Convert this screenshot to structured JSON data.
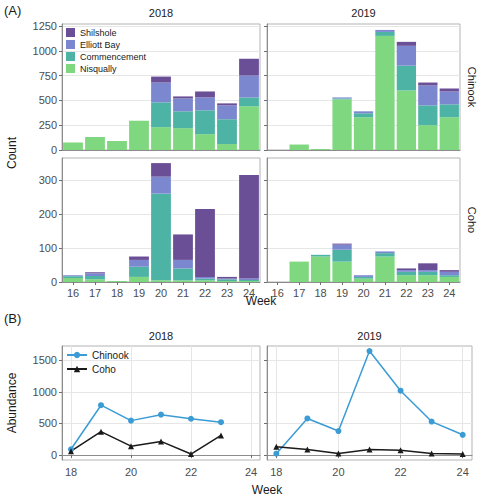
{
  "chart_data": [
    {
      "type": "bar",
      "title": "(A)",
      "stacked": true,
      "grid": true,
      "legend": "top-left",
      "xlabel": "Week",
      "ylabel": "Count",
      "columns": [
        "2018",
        "2019"
      ],
      "categories": [
        "16",
        "17",
        "18",
        "19",
        "20",
        "21",
        "22",
        "23",
        "24"
      ],
      "rows": [
        {
          "title": "Chinook",
          "ylim": [
            0,
            1270
          ],
          "yticks": [
            0,
            250,
            500,
            750,
            1000,
            1250
          ],
          "panels": [
            {
              "series": [
                {
                  "name": "Shilshole",
                  "color": "#6b4f96",
                  "values": [
                    0,
                    0,
                    0,
                    0,
                    60,
                    20,
                    60,
                    20,
                    170
                  ]
                },
                {
                  "name": "Elliott Bay",
                  "color": "#7b88cf",
                  "values": [
                    0,
                    0,
                    0,
                    0,
                    200,
                    130,
                    130,
                    140,
                    220
                  ]
                },
                {
                  "name": "Commencement",
                  "color": "#4db3a4",
                  "values": [
                    0,
                    0,
                    0,
                    0,
                    250,
                    170,
                    240,
                    250,
                    90
                  ]
                },
                {
                  "name": "Nisqually",
                  "color": "#7fd77f",
                  "values": [
                    75,
                    130,
                    90,
                    295,
                    230,
                    220,
                    160,
                    60,
                    440
                  ]
                }
              ]
            },
            {
              "series": [
                {
                  "name": "Shilshole",
                  "color": "#6b4f96",
                  "values": [
                    null,
                    0,
                    0,
                    0,
                    0,
                    0,
                    40,
                    30,
                    30
                  ]
                },
                {
                  "name": "Elliott Bay",
                  "color": "#7b88cf",
                  "values": [
                    null,
                    0,
                    0,
                    10,
                    20,
                    20,
                    200,
                    200,
                    130
                  ]
                },
                {
                  "name": "Commencement",
                  "color": "#4db3a4",
                  "values": [
                    null,
                    0,
                    0,
                    10,
                    40,
                    40,
                    250,
                    200,
                    130
                  ]
                },
                {
                  "name": "Nisqually",
                  "color": "#7fd77f",
                  "values": [
                    null,
                    55,
                    10,
                    510,
                    330,
                    1150,
                    600,
                    250,
                    330
                  ]
                }
              ]
            }
          ]
        },
        {
          "title": "Coho",
          "ylim": [
            0,
            365
          ],
          "yticks": [
            0,
            100,
            200,
            300
          ],
          "panels": [
            {
              "series": [
                {
                  "name": "Shilshole",
                  "color": "#6b4f96",
                  "values": [
                    0,
                    3,
                    0,
                    10,
                    40,
                    75,
                    200,
                    5,
                    305
                  ]
                },
                {
                  "name": "Elliott Bay",
                  "color": "#7b88cf",
                  "values": [
                    3,
                    8,
                    0,
                    20,
                    50,
                    25,
                    5,
                    2,
                    4
                  ]
                },
                {
                  "name": "Commencement",
                  "color": "#4db3a4",
                  "values": [
                    5,
                    10,
                    0,
                    30,
                    255,
                    35,
                    5,
                    5,
                    3
                  ]
                },
                {
                  "name": "Nisqually",
                  "color": "#7fd77f",
                  "values": [
                    12,
                    8,
                    3,
                    15,
                    5,
                    5,
                    5,
                    3,
                    3
                  ]
                }
              ]
            },
            {
              "series": [
                {
                  "name": "Shilshole",
                  "color": "#6b4f96",
                  "values": [
                    null,
                    0,
                    0,
                    3,
                    0,
                    0,
                    5,
                    20,
                    5
                  ]
                },
                {
                  "name": "Elliott Bay",
                  "color": "#7b88cf",
                  "values": [
                    null,
                    0,
                    0,
                    15,
                    5,
                    5,
                    5,
                    5,
                    10
                  ]
                },
                {
                  "name": "Commencement",
                  "color": "#4db3a4",
                  "values": [
                    null,
                    0,
                    5,
                    35,
                    5,
                    10,
                    10,
                    10,
                    5
                  ]
                },
                {
                  "name": "Nisqually",
                  "color": "#7fd77f",
                  "values": [
                    null,
                    60,
                    75,
                    60,
                    10,
                    75,
                    20,
                    20,
                    15
                  ]
                }
              ]
            }
          ]
        }
      ]
    },
    {
      "type": "line",
      "title": "(B)",
      "grid": true,
      "legend": "top-left",
      "xlabel": "Week",
      "ylabel": "Abundance",
      "columns": [
        "2018",
        "2019"
      ],
      "xlim": [
        17.7,
        24.3
      ],
      "xticks": [
        18,
        20,
        22,
        24
      ],
      "ylim": [
        -80,
        1730
      ],
      "yticks": [
        0,
        500,
        1000,
        1500
      ],
      "panels": [
        {
          "series": [
            {
              "name": "Chinook",
              "color": "#3a9bd5",
              "marker": "circle",
              "x": [
                18,
                19,
                20,
                21,
                22,
                23
              ],
              "values": [
                90,
                790,
                545,
                640,
                575,
                520
              ]
            },
            {
              "name": "Coho",
              "color": "#1a1a1a",
              "marker": "triangle",
              "x": [
                18,
                19,
                20,
                21,
                22,
                23
              ],
              "values": [
                60,
                370,
                140,
                215,
                15,
                310
              ]
            }
          ]
        },
        {
          "series": [
            {
              "name": "Chinook",
              "color": "#3a9bd5",
              "marker": "circle",
              "x": [
                18,
                19,
                20,
                21,
                22,
                23,
                24
              ],
              "values": [
                20,
                580,
                380,
                1650,
                1020,
                530,
                320
              ]
            },
            {
              "name": "Coho",
              "color": "#1a1a1a",
              "marker": "triangle",
              "x": [
                18,
                19,
                20,
                21,
                22,
                23,
                24
              ],
              "values": [
                130,
                85,
                25,
                85,
                75,
                25,
                15
              ]
            }
          ]
        }
      ]
    }
  ]
}
